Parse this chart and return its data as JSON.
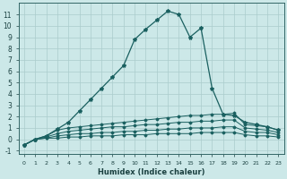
{
  "xlabel": "Humidex (Indice chaleur)",
  "background_color": "#cce8e8",
  "grid_color": "#aacccc",
  "line_color": "#1a6060",
  "xlim": [
    -0.5,
    23.5
  ],
  "ylim": [
    -1.3,
    12
  ],
  "xticks": [
    0,
    1,
    2,
    3,
    4,
    5,
    6,
    7,
    8,
    9,
    10,
    11,
    12,
    13,
    14,
    15,
    16,
    17,
    18,
    19,
    20,
    21,
    22,
    23
  ],
  "yticks": [
    -1,
    0,
    1,
    2,
    3,
    4,
    5,
    6,
    7,
    8,
    9,
    10,
    11
  ],
  "x": [
    0,
    1,
    2,
    3,
    4,
    5,
    6,
    7,
    8,
    9,
    10,
    11,
    12,
    13,
    14,
    15,
    16,
    17,
    18,
    19,
    20,
    21,
    22,
    23
  ],
  "series_main": [
    -0.5,
    0.0,
    0.3,
    0.9,
    1.5,
    2.5,
    3.5,
    4.5,
    5.5,
    6.5,
    8.8,
    9.7,
    10.5,
    11.3,
    11.0,
    9.0,
    9.8,
    4.5,
    2.2,
    2.1,
    1.5,
    1.3,
    1.1,
    0.8
  ],
  "series_flat": [
    [
      -0.5,
      0.0,
      0.3,
      0.8,
      1.0,
      1.1,
      1.2,
      1.3,
      1.4,
      1.5,
      1.6,
      1.7,
      1.8,
      1.9,
      2.0,
      2.1,
      2.1,
      2.2,
      2.2,
      2.3,
      1.3,
      1.2,
      1.1,
      0.8
    ],
    [
      -0.5,
      0.0,
      0.2,
      0.5,
      0.7,
      0.8,
      0.9,
      1.0,
      1.1,
      1.1,
      1.2,
      1.3,
      1.3,
      1.4,
      1.5,
      1.5,
      1.6,
      1.6,
      1.7,
      1.7,
      1.0,
      0.9,
      0.8,
      0.6
    ],
    [
      -0.5,
      0.0,
      0.1,
      0.3,
      0.4,
      0.5,
      0.5,
      0.6,
      0.6,
      0.7,
      0.7,
      0.8,
      0.8,
      0.9,
      0.9,
      1.0,
      1.0,
      1.0,
      1.1,
      1.1,
      0.7,
      0.6,
      0.6,
      0.4
    ],
    [
      -0.5,
      0.0,
      0.1,
      0.1,
      0.2,
      0.2,
      0.3,
      0.3,
      0.3,
      0.4,
      0.4,
      0.4,
      0.5,
      0.5,
      0.5,
      0.5,
      0.6,
      0.6,
      0.6,
      0.6,
      0.4,
      0.3,
      0.3,
      0.2
    ]
  ]
}
